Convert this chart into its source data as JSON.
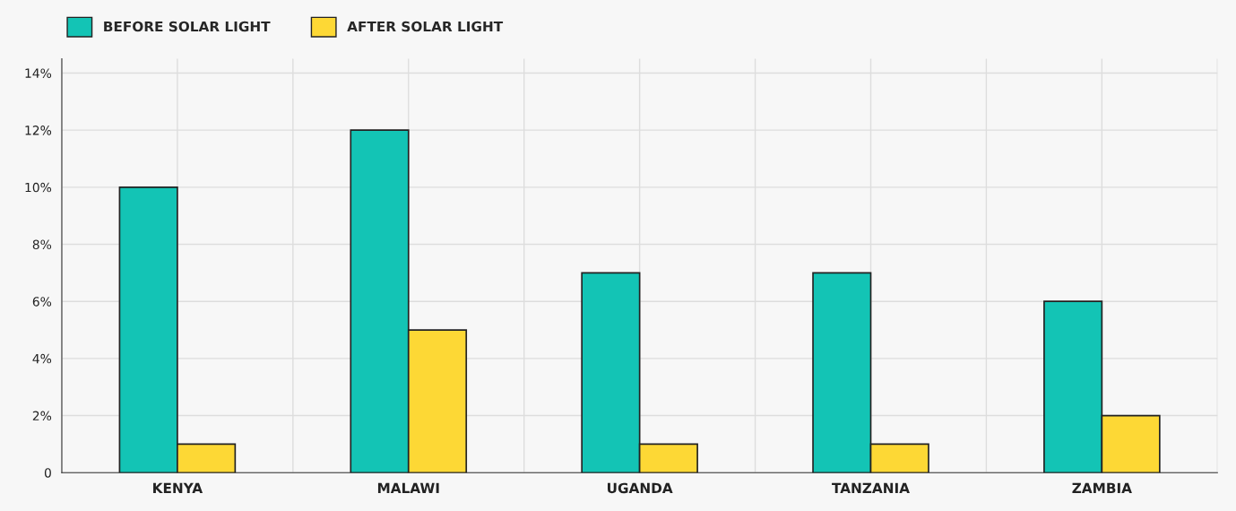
{
  "chart_data": {
    "type": "bar",
    "categories": [
      "KENYA",
      "MALAWI",
      "UGANDA",
      "TANZANIA",
      "ZAMBIA"
    ],
    "series": [
      {
        "name": "BEFORE SOLAR LIGHT",
        "color": "#13c4b5",
        "values": [
          10,
          12,
          7,
          7,
          6
        ]
      },
      {
        "name": "AFTER SOLAR LIGHT",
        "color": "#fdd835",
        "values": [
          1,
          5,
          1,
          1,
          2
        ]
      }
    ],
    "ylim": [
      0,
      14.5
    ],
    "yticks": [
      {
        "value": 0,
        "label": "0"
      },
      {
        "value": 2,
        "label": "2%"
      },
      {
        "value": 4,
        "label": "4%"
      },
      {
        "value": 6,
        "label": "6%"
      },
      {
        "value": 8,
        "label": "8%"
      },
      {
        "value": 10,
        "label": "10%"
      },
      {
        "value": 12,
        "label": "12%"
      },
      {
        "value": 14,
        "label": "14%"
      }
    ],
    "grid": true,
    "legend": "top left"
  }
}
